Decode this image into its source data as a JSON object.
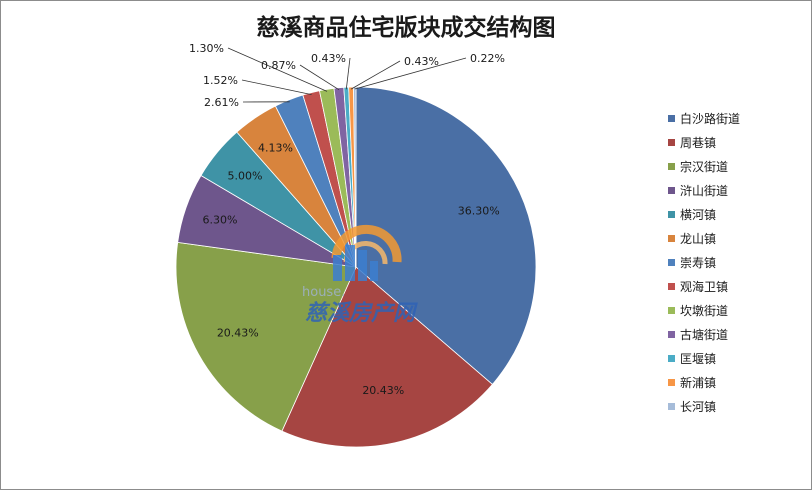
{
  "chart_data": {
    "type": "pie",
    "title": "慈溪商品住宅版块成交结构图",
    "slices": [
      {
        "label": "白沙路街道",
        "value": 36.3,
        "display": "36.30%",
        "color": "#4a6fa5"
      },
      {
        "label": "周巷镇",
        "value": 20.43,
        "display": "20.43%",
        "color": "#a64542"
      },
      {
        "label": "宗汉街道",
        "value": 20.43,
        "display": "20.43%",
        "color": "#87a04a"
      },
      {
        "label": "浒山街道",
        "value": 6.3,
        "display": "6.30%",
        "color": "#6e568c"
      },
      {
        "label": "横河镇",
        "value": 5.0,
        "display": "5.00%",
        "color": "#3f93a6"
      },
      {
        "label": "龙山镇",
        "value": 4.13,
        "display": "4.13%",
        "color": "#d8843d"
      },
      {
        "label": "崇寿镇",
        "value": 2.61,
        "display": "2.61%",
        "color": "#4f81bd"
      },
      {
        "label": "观海卫镇",
        "value": 1.52,
        "display": "1.52%",
        "color": "#c0504d"
      },
      {
        "label": "坎墩街道",
        "value": 1.3,
        "display": "1.30%",
        "color": "#9bbb59"
      },
      {
        "label": "古塘街道",
        "value": 0.87,
        "display": "0.87%",
        "color": "#8064a2"
      },
      {
        "label": "匡堰镇",
        "value": 0.43,
        "display": "0.43%",
        "color": "#4bacc6"
      },
      {
        "label": "新浦镇",
        "value": 0.43,
        "display": "0.43%",
        "color": "#f79646"
      },
      {
        "label": "长河镇",
        "value": 0.22,
        "display": "0.22%",
        "color": "#a6bcd9"
      }
    ],
    "legend_position": "right"
  },
  "watermark": {
    "text": "house.",
    "name": "慈溪房产网"
  }
}
